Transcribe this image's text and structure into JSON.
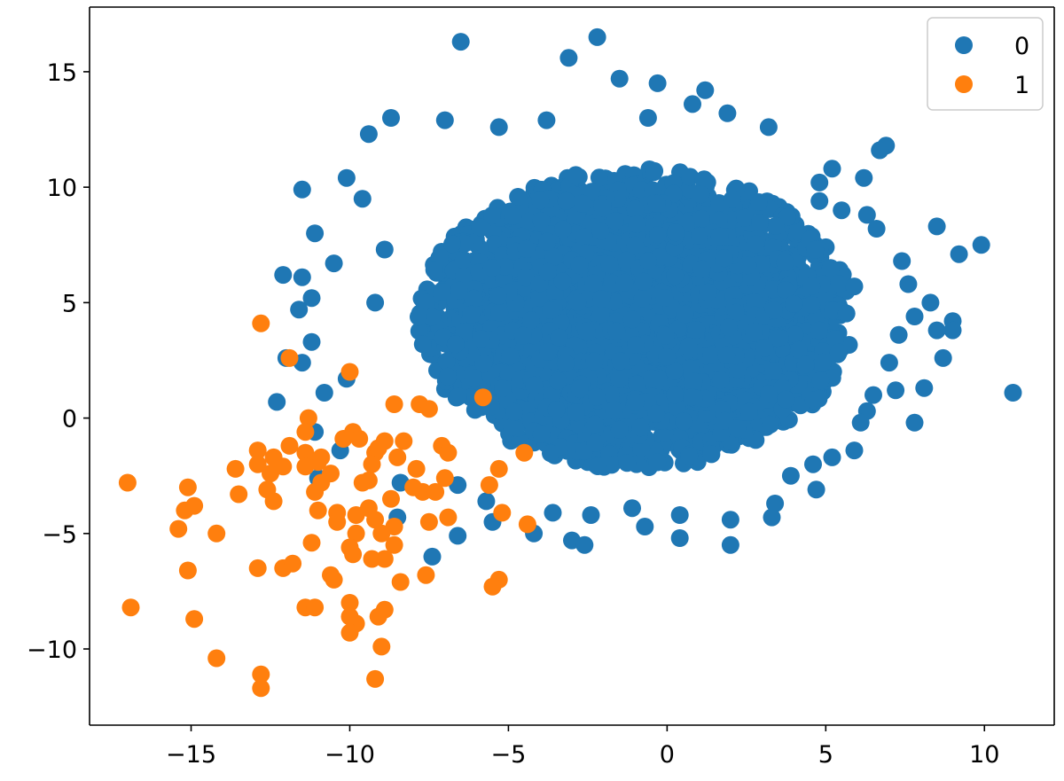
{
  "chart_data": {
    "type": "scatter",
    "title": "",
    "xlabel": "",
    "ylabel": "",
    "xlim": [
      -18.2,
      12.2
    ],
    "ylim": [
      -13.3,
      17.8
    ],
    "xticks": [
      -15,
      -10,
      -5,
      0,
      5,
      10
    ],
    "yticks": [
      -10,
      -5,
      0,
      5,
      10,
      15
    ],
    "xtick_labels": [
      "−15",
      "−10",
      "−5",
      "0",
      "5",
      "10"
    ],
    "ytick_labels": [
      "−10",
      "−5",
      "0",
      "5",
      "10",
      "15"
    ],
    "grid": false,
    "legend_position": "top-right",
    "series": [
      {
        "name": "0",
        "color": "#1f77b4",
        "cluster": {
          "center": [
            -1.0,
            4.3
          ],
          "spread": [
            3.6,
            3.1
          ],
          "count": 5000
        },
        "outliers": [
          [
            -6.5,
            16.3
          ],
          [
            -2.2,
            16.5
          ],
          [
            -3.1,
            15.6
          ],
          [
            -1.5,
            14.7
          ],
          [
            -0.3,
            14.5
          ],
          [
            1.2,
            14.2
          ],
          [
            -8.7,
            13.0
          ],
          [
            -9.4,
            12.3
          ],
          [
            1.9,
            13.2
          ],
          [
            3.2,
            12.6
          ],
          [
            6.9,
            11.8
          ],
          [
            6.7,
            11.6
          ],
          [
            -11.5,
            9.9
          ],
          [
            -10.1,
            10.4
          ],
          [
            -12.1,
            6.2
          ],
          [
            -11.1,
            8.0
          ],
          [
            -11.5,
            6.1
          ],
          [
            -11.6,
            4.7
          ],
          [
            -12.3,
            0.7
          ],
          [
            8.5,
            8.3
          ],
          [
            9.9,
            7.5
          ],
          [
            9.2,
            7.1
          ],
          [
            9.0,
            4.2
          ],
          [
            9.0,
            3.8
          ],
          [
            8.5,
            3.8
          ],
          [
            8.7,
            2.6
          ],
          [
            10.9,
            1.1
          ],
          [
            8.1,
            1.3
          ],
          [
            7.4,
            6.8
          ],
          [
            7.6,
            5.8
          ],
          [
            6.6,
            8.2
          ],
          [
            6.2,
            10.4
          ],
          [
            5.2,
            10.8
          ],
          [
            4.8,
            9.4
          ],
          [
            7.8,
            4.4
          ],
          [
            7.3,
            3.6
          ],
          [
            7.0,
            2.4
          ],
          [
            7.2,
            1.2
          ],
          [
            6.5,
            1.0
          ],
          [
            6.3,
            0.3
          ],
          [
            5.9,
            -1.4
          ],
          [
            5.2,
            -1.7
          ],
          [
            4.6,
            -2.0
          ],
          [
            3.9,
            -2.5
          ],
          [
            4.7,
            -3.1
          ],
          [
            3.3,
            -4.3
          ],
          [
            2.0,
            -4.4
          ],
          [
            2.0,
            -5.5
          ],
          [
            0.4,
            -5.2
          ],
          [
            0.4,
            -4.2
          ],
          [
            -0.7,
            -4.7
          ],
          [
            -2.4,
            -4.2
          ],
          [
            -3.0,
            -5.3
          ],
          [
            -2.6,
            -5.5
          ],
          [
            -4.2,
            -5.0
          ],
          [
            -6.6,
            -5.1
          ],
          [
            -7.4,
            -6.0
          ],
          [
            -8.5,
            -4.3
          ],
          [
            -11.1,
            -0.6
          ],
          [
            -10.3,
            -1.4
          ],
          [
            -11.0,
            -2.6
          ],
          [
            -12.0,
            2.6
          ],
          [
            -11.5,
            2.4
          ],
          [
            -10.8,
            1.1
          ],
          [
            -10.1,
            1.7
          ],
          [
            -11.2,
            3.3
          ],
          [
            -9.6,
            9.5
          ],
          [
            -8.9,
            7.3
          ],
          [
            -10.5,
            6.7
          ],
          [
            -11.2,
            5.2
          ],
          [
            -9.2,
            5.0
          ],
          [
            0.8,
            13.6
          ],
          [
            -0.6,
            13.0
          ],
          [
            -3.8,
            12.9
          ],
          [
            -5.3,
            12.6
          ],
          [
            -7.0,
            12.9
          ],
          [
            4.8,
            10.2
          ],
          [
            5.5,
            9.0
          ],
          [
            6.3,
            8.8
          ],
          [
            8.3,
            5.0
          ],
          [
            5.9,
            5.7
          ],
          [
            7.8,
            -0.2
          ],
          [
            6.1,
            -0.2
          ],
          [
            3.4,
            -3.7
          ],
          [
            -1.1,
            -3.9
          ],
          [
            -3.6,
            -4.1
          ],
          [
            -5.5,
            -4.5
          ],
          [
            -5.7,
            -3.6
          ],
          [
            -6.6,
            -2.9
          ],
          [
            -8.4,
            -2.8
          ]
        ]
      },
      {
        "name": "1",
        "color": "#ff7f0e",
        "points": [
          [
            -12.8,
            4.1
          ],
          [
            -11.9,
            2.6
          ],
          [
            -10.0,
            2.0
          ],
          [
            -5.8,
            0.9
          ],
          [
            -8.6,
            0.6
          ],
          [
            -7.8,
            0.6
          ],
          [
            -7.5,
            0.4
          ],
          [
            -11.3,
            0.0
          ],
          [
            -11.4,
            -0.6
          ],
          [
            -10.2,
            -0.9
          ],
          [
            -9.9,
            -0.6
          ],
          [
            -9.7,
            -0.9
          ],
          [
            -8.9,
            -1.0
          ],
          [
            -8.3,
            -1.0
          ],
          [
            -7.1,
            -1.2
          ],
          [
            -6.9,
            -1.5
          ],
          [
            -4.5,
            -1.5
          ],
          [
            -12.9,
            -1.4
          ],
          [
            -12.4,
            -1.7
          ],
          [
            -11.9,
            -1.2
          ],
          [
            -11.4,
            -1.5
          ],
          [
            -9.2,
            -1.5
          ],
          [
            -8.5,
            -1.7
          ],
          [
            -13.6,
            -2.2
          ],
          [
            -12.9,
            -2.0
          ],
          [
            -12.5,
            -2.4
          ],
          [
            -12.1,
            -2.1
          ],
          [
            -11.4,
            -2.1
          ],
          [
            -10.6,
            -2.4
          ],
          [
            -10.9,
            -2.8
          ],
          [
            -9.3,
            -2.0
          ],
          [
            -9.4,
            -2.7
          ],
          [
            -7.9,
            -2.2
          ],
          [
            -7.0,
            -2.6
          ],
          [
            -5.3,
            -2.2
          ],
          [
            -17.0,
            -2.8
          ],
          [
            -15.1,
            -3.0
          ],
          [
            -13.5,
            -3.3
          ],
          [
            -12.6,
            -3.1
          ],
          [
            -12.4,
            -3.6
          ],
          [
            -11.1,
            -3.2
          ],
          [
            -9.6,
            -2.8
          ],
          [
            -8.7,
            -3.5
          ],
          [
            -7.7,
            -3.2
          ],
          [
            -7.3,
            -3.2
          ],
          [
            -5.6,
            -2.9
          ],
          [
            -15.2,
            -4.0
          ],
          [
            -14.9,
            -3.8
          ],
          [
            -11.0,
            -4.0
          ],
          [
            -10.4,
            -4.1
          ],
          [
            -9.8,
            -4.2
          ],
          [
            -9.4,
            -3.9
          ],
          [
            -9.2,
            -4.4
          ],
          [
            -8.6,
            -4.7
          ],
          [
            -7.5,
            -4.5
          ],
          [
            -6.9,
            -4.3
          ],
          [
            -5.2,
            -4.1
          ],
          [
            -4.4,
            -4.6
          ],
          [
            -15.4,
            -4.8
          ],
          [
            -14.2,
            -5.0
          ],
          [
            -11.2,
            -5.4
          ],
          [
            -10.4,
            -4.5
          ],
          [
            -9.8,
            -5.0
          ],
          [
            -9.0,
            -5.0
          ],
          [
            -8.6,
            -5.5
          ],
          [
            -10.0,
            -5.6
          ],
          [
            -9.9,
            -5.9
          ],
          [
            -15.1,
            -6.6
          ],
          [
            -12.9,
            -6.5
          ],
          [
            -12.1,
            -6.5
          ],
          [
            -11.8,
            -6.3
          ],
          [
            -10.6,
            -6.8
          ],
          [
            -9.3,
            -6.1
          ],
          [
            -8.9,
            -6.1
          ],
          [
            -8.4,
            -7.1
          ],
          [
            -7.6,
            -6.8
          ],
          [
            -10.5,
            -7.0
          ],
          [
            -5.3,
            -7.0
          ],
          [
            -5.5,
            -7.3
          ],
          [
            -16.9,
            -8.2
          ],
          [
            -14.9,
            -8.7
          ],
          [
            -11.4,
            -8.2
          ],
          [
            -11.1,
            -8.2
          ],
          [
            -10.0,
            -8.0
          ],
          [
            -10.0,
            -8.6
          ],
          [
            -9.8,
            -8.9
          ],
          [
            -9.1,
            -8.6
          ],
          [
            -8.9,
            -8.3
          ],
          [
            -10.0,
            -9.3
          ],
          [
            -9.0,
            -9.9
          ],
          [
            -14.2,
            -10.4
          ],
          [
            -12.8,
            -11.1
          ],
          [
            -12.8,
            -11.7
          ],
          [
            -9.2,
            -11.3
          ],
          [
            -11.0,
            -1.9
          ],
          [
            -9.1,
            -1.3
          ],
          [
            -8.0,
            -3.0
          ],
          [
            -10.9,
            -1.7
          ]
        ]
      }
    ]
  }
}
